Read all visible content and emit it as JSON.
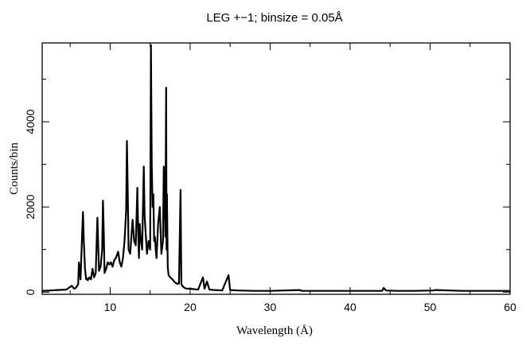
{
  "chart_data": {
    "type": "line",
    "title": "LEG +−1; binsize = 0.05Å",
    "xlabel": "Wavelength (Å)",
    "ylabel": "Counts/bin",
    "xlim": [
      1.5,
      60
    ],
    "ylim": [
      -50,
      5850
    ],
    "grid": false,
    "x_ticks": [
      10,
      20,
      30,
      40,
      50,
      60
    ],
    "y_ticks": [
      0,
      2000,
      4000
    ],
    "series": [
      {
        "color": "#000000",
        "x": [
          1.5,
          2.5,
          3.5,
          4.5,
          5.2,
          5.5,
          5.7,
          6.0,
          6.1,
          6.3,
          6.5,
          6.6,
          6.7,
          6.75,
          6.85,
          7.0,
          7.1,
          7.2,
          7.4,
          7.6,
          7.8,
          8.0,
          8.2,
          8.4,
          8.6,
          8.8,
          9.0,
          9.1,
          9.2,
          9.3,
          9.5,
          9.7,
          9.9,
          10.1,
          10.3,
          10.5,
          10.7,
          10.9,
          11.0,
          11.2,
          11.4,
          11.6,
          11.8,
          12.0,
          12.1,
          12.2,
          12.3,
          12.5,
          12.8,
          13.0,
          13.2,
          13.4,
          13.5,
          13.6,
          13.7,
          13.8,
          14.0,
          14.2,
          14.3,
          14.4,
          14.6,
          14.8,
          15.0,
          15.1,
          15.2,
          15.3,
          15.4,
          15.5,
          15.6,
          15.7,
          15.8,
          16.0,
          16.2,
          16.4,
          16.6,
          16.7,
          16.8,
          16.9,
          17.0,
          17.05,
          17.1,
          17.2,
          17.3,
          17.5,
          17.8,
          18.0,
          18.3,
          18.6,
          18.8,
          18.9,
          19.0,
          19.3,
          19.6,
          20.0,
          20.5,
          21.0,
          21.6,
          21.8,
          22.1,
          22.4,
          23.0,
          24.0,
          24.8,
          25.0,
          26.0,
          28.0,
          30.0,
          33.7,
          34.0,
          38.0,
          42.0,
          44.0,
          44.2,
          44.5,
          46.0,
          48.0,
          50.4,
          50.7,
          54.0,
          58.0,
          60.0
        ],
        "y": [
          30,
          40,
          50,
          60,
          150,
          80,
          100,
          180,
          700,
          300,
          1400,
          1880,
          1200,
          1000,
          550,
          300,
          320,
          280,
          350,
          300,
          550,
          350,
          450,
          1750,
          500,
          600,
          1000,
          2150,
          1400,
          450,
          550,
          700,
          650,
          700,
          600,
          750,
          800,
          900,
          950,
          700,
          600,
          800,
          1200,
          1900,
          3550,
          2400,
          1000,
          900,
          1700,
          1200,
          1100,
          2450,
          1500,
          800,
          1600,
          1300,
          1000,
          2950,
          1800,
          1500,
          900,
          1200,
          1000,
          5800,
          3000,
          2000,
          2300,
          1200,
          1300,
          1000,
          800,
          1600,
          2000,
          900,
          1200,
          2950,
          2400,
          1300,
          4800,
          1000,
          2300,
          600,
          400,
          350,
          300,
          250,
          200,
          200,
          2400,
          200,
          150,
          100,
          80,
          80,
          70,
          60,
          350,
          80,
          250,
          60,
          50,
          40,
          400,
          50,
          40,
          30,
          30,
          50,
          30,
          30,
          30,
          30,
          100,
          40,
          30,
          30,
          40,
          50,
          30,
          30,
          30
        ]
      }
    ]
  }
}
